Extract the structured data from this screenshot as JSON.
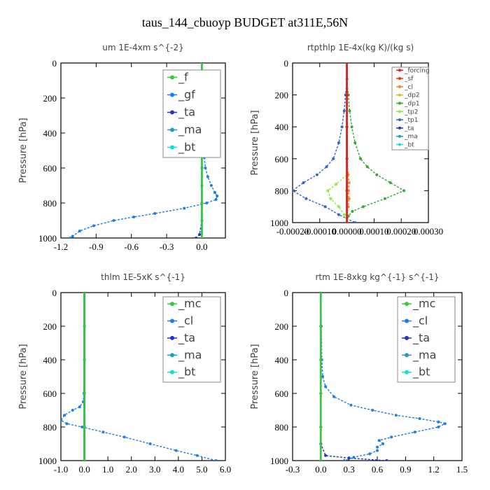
{
  "title": "taus_144_cbuoyp  BUDGET at311E,56N",
  "chart_data": [
    {
      "type": "line",
      "title": "um  1E-4xm s^{-2}",
      "ylabel": "Pressure [hPa]",
      "xlim": [
        -1.2,
        0.2
      ],
      "ylim": [
        1000,
        0
      ],
      "xticks": [
        -1.2,
        -0.9,
        -0.6,
        -0.3,
        0.0
      ],
      "xtick_labels": [
        "-1.2",
        "-0.9",
        "-0.6",
        "-0.3",
        "0.0"
      ],
      "yticks": [
        0,
        200,
        400,
        600,
        800,
        1000
      ],
      "legend": "top-right",
      "series": [
        {
          "name": "_f",
          "color": "#33cc33",
          "y": [
            0,
            100,
            200,
            300,
            400,
            500,
            600,
            700,
            800,
            900,
            1000
          ],
          "values": [
            0,
            0,
            0,
            0,
            0,
            0,
            0,
            0,
            0,
            0,
            0
          ]
        },
        {
          "name": "_gf",
          "color": "#1a7fe6",
          "y": [
            0,
            100,
            200,
            300,
            400,
            500,
            540,
            600,
            650,
            700,
            740,
            760,
            780,
            800,
            830,
            860,
            880,
            900,
            930,
            960,
            990,
            1000
          ],
          "values": [
            0,
            0,
            0,
            0,
            0,
            0.01,
            0.02,
            0.03,
            0.05,
            0.08,
            0.11,
            0.13,
            0.12,
            0.04,
            -0.15,
            -0.4,
            -0.58,
            -0.75,
            -0.92,
            -1.04,
            -1.1,
            -1.12
          ]
        },
        {
          "name": "_ta",
          "color": "#2233cc",
          "y": [
            0,
            200,
            400,
            600,
            800,
            900,
            980,
            1000
          ],
          "values": [
            0,
            0,
            0,
            0,
            0,
            0,
            -0.02,
            -0.05
          ]
        },
        {
          "name": "_ma",
          "color": "#2299cc",
          "y": [
            0,
            200,
            400,
            600,
            800,
            1000
          ],
          "values": [
            0,
            0,
            0,
            0,
            0,
            0
          ]
        },
        {
          "name": "_bt",
          "color": "#11dddd",
          "y": [
            0,
            200,
            400,
            600,
            800,
            1000
          ],
          "values": [
            0,
            0,
            0,
            0,
            0,
            0
          ]
        }
      ]
    },
    {
      "type": "line",
      "title": "rtpthlp  1E-4x(kg K)/(kg s)",
      "ylabel": "Pressure [hPa]",
      "xlim": [
        -0.0002,
        0.0003
      ],
      "ylim": [
        1000,
        0
      ],
      "xticks": [
        -0.0002,
        -0.0001,
        0.0,
        0.0001,
        0.0002,
        0.0003
      ],
      "xtick_labels": [
        "-0.00020",
        "-0.00010",
        "0.00000",
        "0.00010",
        "0.00020",
        "0.00030"
      ],
      "yticks": [
        0,
        200,
        400,
        600,
        800,
        1000
      ],
      "legend": "top-right",
      "series": [
        {
          "name": "_forcing",
          "color": "#dd2222",
          "y": [
            0,
            200,
            400,
            600,
            800,
            1000
          ],
          "values": [
            0,
            0,
            0,
            0,
            0,
            0
          ]
        },
        {
          "name": "_sf",
          "color": "#ee3311",
          "y": [
            0,
            200,
            400,
            600,
            800,
            1000
          ],
          "values": [
            0,
            0,
            0,
            0,
            0,
            0
          ]
        },
        {
          "name": "_cl",
          "color": "#ee8833",
          "y": [
            0,
            600,
            700,
            750,
            800,
            850,
            900,
            950,
            1000
          ],
          "values": [
            0,
            0,
            5e-06,
            8e-06,
            6e-06,
            8e-06,
            5e-06,
            0,
            0
          ]
        },
        {
          "name": "_dp2",
          "color": "#ddbb22",
          "y": [
            0,
            700,
            800,
            900,
            1000
          ],
          "values": [
            0,
            3e-06,
            5e-06,
            3e-06,
            0
          ]
        },
        {
          "name": "_dp1",
          "color": "#33aa33",
          "y": [
            0,
            100,
            200,
            300,
            400,
            500,
            600,
            650,
            700,
            750,
            800,
            850,
            900,
            930,
            960,
            1000
          ],
          "values": [
            0,
            0,
            5e-06,
            1e-05,
            1.8e-05,
            3e-05,
            5e-05,
            7.5e-05,
            0.00011,
            0.00016,
            0.00021,
            0.00014,
            6e-05,
            2e-05,
            5e-06,
            0
          ]
        },
        {
          "name": "_tp2",
          "color": "#88ee44",
          "y": [
            0,
            700,
            760,
            800,
            850,
            900,
            950,
            1000
          ],
          "values": [
            0,
            0,
            -4e-05,
            -7e-05,
            -6e-05,
            -3e-05,
            -1e-05,
            0
          ]
        },
        {
          "name": "_tp1",
          "color": "#3366cc",
          "y": [
            0,
            100,
            200,
            300,
            400,
            500,
            600,
            650,
            700,
            750,
            800,
            850,
            900,
            950,
            1000
          ],
          "values": [
            0,
            0,
            -5e-06,
            -1e-05,
            -1.8e-05,
            -3e-05,
            -5e-05,
            -7.5e-05,
            -0.00011,
            -0.00016,
            -0.0002,
            -0.00015,
            -8e-05,
            -3e-05,
            3e-05
          ]
        },
        {
          "name": "_ta",
          "color": "#2233cc",
          "y": [
            0,
            200,
            400,
            600,
            800,
            1000
          ],
          "values": [
            0,
            0,
            0,
            0,
            0,
            0
          ]
        },
        {
          "name": "_ma",
          "color": "#2299cc",
          "y": [
            0,
            200,
            400,
            600,
            800,
            1000
          ],
          "values": [
            0,
            0,
            0,
            0,
            0,
            0
          ]
        },
        {
          "name": "_bt",
          "color": "#11dddd",
          "y": [
            0,
            200,
            400,
            600,
            800,
            1000
          ],
          "values": [
            0,
            0,
            0,
            0,
            0,
            0
          ]
        }
      ]
    },
    {
      "type": "line",
      "title": "thlm  1E-5xK s^{-1}",
      "ylabel": "Pressure [hPa]",
      "xlim": [
        -1.0,
        6.0
      ],
      "ylim": [
        1000,
        0
      ],
      "xticks": [
        -1.0,
        0.0,
        1.0,
        2.0,
        3.0,
        4.0,
        5.0,
        6.0
      ],
      "xtick_labels": [
        "-1.0",
        "0.0",
        "1.0",
        "2.0",
        "3.0",
        "4.0",
        "5.0",
        "6.0"
      ],
      "yticks": [
        0,
        200,
        400,
        600,
        800,
        1000
      ],
      "legend": "top-right",
      "series": [
        {
          "name": "_mc",
          "color": "#33cc33",
          "y": [
            0,
            200,
            400,
            600,
            800,
            1000
          ],
          "values": [
            0,
            0,
            0,
            0,
            0,
            0
          ]
        },
        {
          "name": "_cl",
          "color": "#1a7fe6",
          "y": [
            0,
            200,
            400,
            600,
            650,
            680,
            700,
            730,
            760,
            780,
            800,
            830,
            860,
            900,
            940,
            970,
            1000
          ],
          "values": [
            0,
            0,
            0,
            -0.02,
            -0.05,
            -0.2,
            -0.5,
            -0.85,
            -1.0,
            -0.75,
            -0.1,
            0.8,
            1.7,
            2.8,
            3.9,
            4.8,
            5.6
          ]
        },
        {
          "name": "_ta",
          "color": "#2233cc",
          "y": [
            0,
            200,
            400,
            600,
            800,
            1000
          ],
          "values": [
            0,
            0,
            0,
            0,
            0,
            0
          ]
        },
        {
          "name": "_ma",
          "color": "#2299cc",
          "y": [
            0,
            200,
            400,
            600,
            800,
            1000
          ],
          "values": [
            0,
            0,
            0,
            0,
            0,
            0
          ]
        },
        {
          "name": "_bt",
          "color": "#11dddd",
          "y": [
            0,
            200,
            400,
            600,
            800,
            1000
          ],
          "values": [
            0,
            0,
            0,
            0,
            0,
            0
          ]
        }
      ]
    },
    {
      "type": "line",
      "title": "rtm  1E-8xkg kg^{-1} s^{-1}",
      "ylabel": "Pressure [hPa]",
      "xlim": [
        -0.3,
        1.5
      ],
      "ylim": [
        1000,
        0
      ],
      "xticks": [
        -0.3,
        0.0,
        0.3,
        0.6,
        0.9,
        1.2,
        1.5
      ],
      "xtick_labels": [
        "-0.3",
        "0.0",
        "0.3",
        "0.6",
        "0.9",
        "1.2",
        "1.5"
      ],
      "yticks": [
        0,
        200,
        400,
        600,
        800,
        1000
      ],
      "legend": "top-right",
      "series": [
        {
          "name": "_mc",
          "color": "#33cc33",
          "y": [
            0,
            200,
            400,
            600,
            800,
            1000
          ],
          "values": [
            0,
            0,
            0,
            0,
            0,
            0
          ]
        },
        {
          "name": "_cl",
          "color": "#1a7fe6",
          "y": [
            0,
            200,
            400,
            500,
            560,
            620,
            670,
            700,
            730,
            750,
            770,
            780,
            800,
            830,
            860,
            880,
            900,
            920,
            940,
            960,
            980,
            1000
          ],
          "values": [
            0,
            0.005,
            0.01,
            0.02,
            0.05,
            0.14,
            0.32,
            0.55,
            0.8,
            1.05,
            1.25,
            1.32,
            1.25,
            1.0,
            0.75,
            0.62,
            0.66,
            0.6,
            0.6,
            0.52,
            0.35,
            0.25
          ]
        },
        {
          "name": "_ta",
          "color": "#2233cc",
          "y": [
            0,
            200,
            400,
            600,
            800,
            900,
            970,
            985,
            1000
          ],
          "values": [
            0,
            0,
            0,
            0,
            0,
            0,
            0.05,
            0.3,
            0.7
          ]
        },
        {
          "name": "_ma",
          "color": "#2299cc",
          "y": [
            0,
            200,
            400,
            600,
            800,
            1000
          ],
          "values": [
            0,
            0,
            0,
            0,
            0,
            0
          ]
        },
        {
          "name": "_bt",
          "color": "#11dddd",
          "y": [
            0,
            200,
            400,
            600,
            800,
            1000
          ],
          "values": [
            0,
            0,
            0,
            0,
            0,
            0
          ]
        }
      ]
    }
  ]
}
